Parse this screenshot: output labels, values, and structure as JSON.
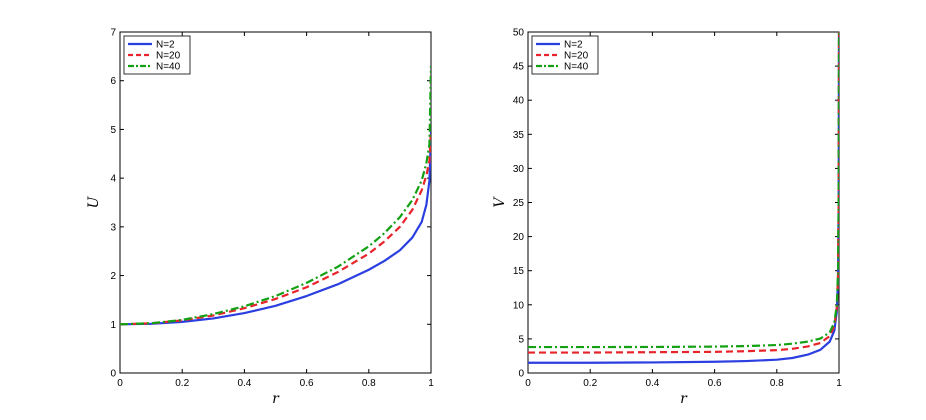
{
  "chart_data": [
    {
      "type": "line",
      "title": "",
      "xlabel": "r",
      "ylabel": "U",
      "xlim": [
        0,
        1
      ],
      "ylim": [
        0,
        7
      ],
      "xticks": [
        "0",
        "0.2",
        "0.4",
        "0.6",
        "0.8",
        "1"
      ],
      "yticks": [
        "0",
        "1",
        "2",
        "3",
        "4",
        "5",
        "6",
        "7"
      ],
      "grid": false,
      "legend_position": "top-left",
      "series": [
        {
          "name": "N=2",
          "color": "#2b3fe0",
          "style": "solid",
          "x": [
            0,
            0.1,
            0.2,
            0.3,
            0.4,
            0.5,
            0.6,
            0.7,
            0.8,
            0.85,
            0.9,
            0.94,
            0.97,
            0.985,
            0.995,
            1
          ],
          "y": [
            1.0,
            1.01,
            1.05,
            1.12,
            1.23,
            1.38,
            1.58,
            1.82,
            2.12,
            2.3,
            2.52,
            2.78,
            3.1,
            3.45,
            3.95,
            4.95
          ]
        },
        {
          "name": "N=20",
          "color": "#e8232a",
          "style": "dashed",
          "x": [
            0,
            0.1,
            0.2,
            0.3,
            0.4,
            0.5,
            0.6,
            0.7,
            0.8,
            0.85,
            0.9,
            0.94,
            0.97,
            0.985,
            0.995,
            1
          ],
          "y": [
            1.0,
            1.02,
            1.08,
            1.18,
            1.33,
            1.52,
            1.76,
            2.07,
            2.45,
            2.7,
            3.0,
            3.35,
            3.75,
            4.05,
            4.35,
            5.0
          ]
        },
        {
          "name": "N=40",
          "color": "#14a014",
          "style": "dashdot",
          "x": [
            0,
            0.1,
            0.2,
            0.3,
            0.4,
            0.5,
            0.6,
            0.7,
            0.8,
            0.85,
            0.9,
            0.94,
            0.97,
            0.985,
            0.995,
            1
          ],
          "y": [
            1.0,
            1.02,
            1.09,
            1.21,
            1.37,
            1.58,
            1.85,
            2.18,
            2.6,
            2.87,
            3.2,
            3.55,
            3.95,
            4.3,
            4.7,
            6.3
          ]
        }
      ]
    },
    {
      "type": "line",
      "title": "",
      "xlabel": "r",
      "ylabel": "V",
      "xlim": [
        0,
        1
      ],
      "ylim": [
        0,
        50
      ],
      "xticks": [
        "0",
        "0.2",
        "0.4",
        "0.6",
        "0.8",
        "1"
      ],
      "yticks": [
        "0",
        "5",
        "10",
        "15",
        "20",
        "25",
        "30",
        "35",
        "40",
        "45",
        "50"
      ],
      "grid": false,
      "legend_position": "top-left",
      "series": [
        {
          "name": "N=2",
          "color": "#2b3fe0",
          "style": "solid",
          "x": [
            0,
            0.2,
            0.4,
            0.6,
            0.7,
            0.8,
            0.85,
            0.9,
            0.94,
            0.97,
            0.985,
            0.993,
            0.997,
            0.999,
            1
          ],
          "y": [
            1.5,
            1.5,
            1.55,
            1.65,
            1.75,
            1.95,
            2.2,
            2.7,
            3.4,
            4.6,
            6.2,
            9.0,
            14.0,
            25.0,
            50.0
          ]
        },
        {
          "name": "N=20",
          "color": "#e8232a",
          "style": "dashed",
          "x": [
            0,
            0.2,
            0.4,
            0.6,
            0.7,
            0.8,
            0.85,
            0.9,
            0.94,
            0.97,
            0.985,
            0.993,
            0.997,
            0.999,
            1
          ],
          "y": [
            3.0,
            3.0,
            3.05,
            3.1,
            3.2,
            3.35,
            3.55,
            3.9,
            4.4,
            5.4,
            6.9,
            9.6,
            14.5,
            25.5,
            50.0
          ]
        },
        {
          "name": "N=40",
          "color": "#14a014",
          "style": "dashdot",
          "x": [
            0,
            0.2,
            0.4,
            0.6,
            0.7,
            0.8,
            0.85,
            0.9,
            0.94,
            0.97,
            0.985,
            0.993,
            0.997,
            0.999,
            1
          ],
          "y": [
            3.8,
            3.8,
            3.82,
            3.87,
            3.95,
            4.1,
            4.3,
            4.6,
            5.05,
            5.95,
            7.4,
            10.0,
            15.0,
            26.0,
            50.0
          ]
        }
      ]
    }
  ]
}
